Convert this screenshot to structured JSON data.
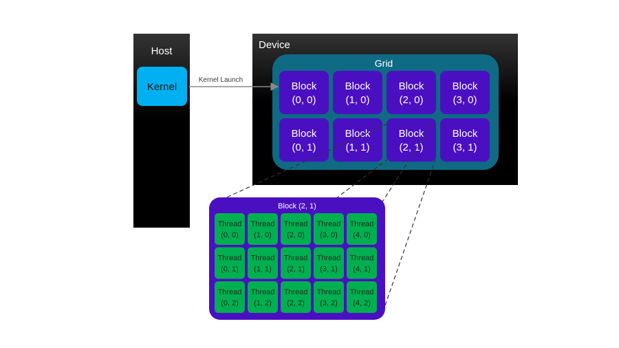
{
  "host": {
    "title": "Host",
    "kernel_label": "Kernel"
  },
  "launch_label": "Kernel Launch",
  "device": {
    "title": "Device",
    "grid_title": "Grid",
    "blocks": [
      [
        {
          "line1": "Block",
          "line2": "(0, 0)"
        },
        {
          "line1": "Block",
          "line2": "(1, 0)"
        },
        {
          "line1": "Block",
          "line2": "(2, 0)"
        },
        {
          "line1": "Block",
          "line2": "(3, 0)"
        }
      ],
      [
        {
          "line1": "Block",
          "line2": "(0, 1)"
        },
        {
          "line1": "Block",
          "line2": "(1, 1)"
        },
        {
          "line1": "Block",
          "line2": "(2, 1)"
        },
        {
          "line1": "Block",
          "line2": "(3, 1)"
        }
      ]
    ]
  },
  "zoom_block": {
    "title": "Block (2, 1)",
    "threads": [
      [
        {
          "line1": "Thread",
          "line2": "(0, 0)"
        },
        {
          "line1": "Thread",
          "line2": "(1, 0)"
        },
        {
          "line1": "Thread",
          "line2": "(2, 0)"
        },
        {
          "line1": "Thread",
          "line2": "(3, 0)"
        },
        {
          "line1": "Thread",
          "line2": "(4, 0)"
        }
      ],
      [
        {
          "line1": "Thread",
          "line2": "(0, 1)"
        },
        {
          "line1": "Thread",
          "line2": "(1, 1)"
        },
        {
          "line1": "Thread",
          "line2": "(2, 1)"
        },
        {
          "line1": "Thread",
          "line2": "(3, 1)"
        },
        {
          "line1": "Thread",
          "line2": "(4, 1)"
        }
      ],
      [
        {
          "line1": "Thread",
          "line2": "(0, 2)"
        },
        {
          "line1": "Thread",
          "line2": "(1, 2)"
        },
        {
          "line1": "Thread",
          "line2": "(2, 2)"
        },
        {
          "line1": "Thread",
          "line2": "(3, 2)"
        },
        {
          "line1": "Thread",
          "line2": "(4, 2)"
        }
      ]
    ]
  },
  "colors": {
    "panel_dark": "#000000",
    "panel_gradient_top": "#2e2e2e",
    "kernel_fill": "#00b0f0",
    "grid_fill": "#0f6b84",
    "block_fill": "#4b0fc2",
    "thread_fill": "#00b050",
    "thread_text": "#1f2d1f",
    "light_text": "#ffffff"
  }
}
